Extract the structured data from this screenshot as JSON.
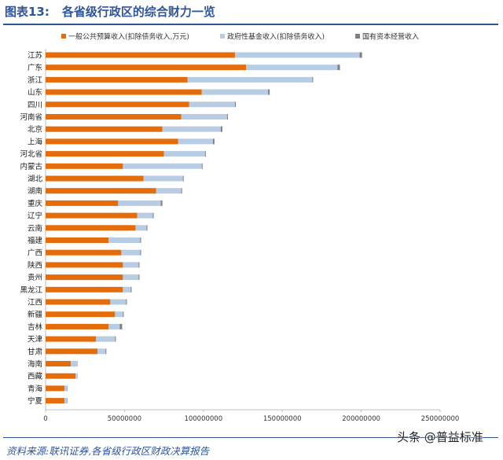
{
  "header": {
    "figure_label": "图表13:",
    "title": "各省级行政区的综合财力一览"
  },
  "footer": {
    "source": "资料来源:联讯证券,各省级行政区财政决算报告",
    "watermark": "头条 @普益标准"
  },
  "chart_data": {
    "type": "bar",
    "orientation": "horizontal",
    "stacked": true,
    "title": "各省级行政区的综合财力一览",
    "xlabel": "",
    "ylabel": "",
    "xlim": [
      0,
      250000000
    ],
    "x_ticks": [
      0,
      50000000,
      100000000,
      150000000,
      200000000,
      250000000
    ],
    "x_tick_labels": [
      "0",
      "50000000",
      "100000000",
      "150000000",
      "200000000",
      "250000000"
    ],
    "grid": false,
    "legend_position": "top",
    "categories": [
      "江苏",
      "广东",
      "浙江",
      "山东",
      "四川",
      "河南省",
      "北京",
      "上海",
      "河北省",
      "内蒙古",
      "湖北",
      "湖南",
      "重庆",
      "辽宁",
      "云南",
      "福建",
      "广西",
      "陕西",
      "贵州",
      "黑龙江",
      "江西",
      "新疆",
      "吉林",
      "天津",
      "甘肃",
      "海南",
      "西藏",
      "青海",
      "宁夏"
    ],
    "series": [
      {
        "name": "一般公共预算收入(扣除债务收入,万元)",
        "color": "#e46c0a",
        "values": [
          120000000,
          127000000,
          90000000,
          99000000,
          91000000,
          86000000,
          74000000,
          84000000,
          75000000,
          49000000,
          62000000,
          70000000,
          46000000,
          58000000,
          57000000,
          40000000,
          48000000,
          49000000,
          49000000,
          49000000,
          41000000,
          44000000,
          40000000,
          32000000,
          33000000,
          16000000,
          19000000,
          12000000,
          12000000
        ]
      },
      {
        "name": "政府性基金收入(扣除债务收入)",
        "color": "#b8cce4",
        "values": [
          79000000,
          58000000,
          79000000,
          42000000,
          29000000,
          29000000,
          37000000,
          22000000,
          26000000,
          50000000,
          25000000,
          16000000,
          27000000,
          10000000,
          7000000,
          20000000,
          12000000,
          10000000,
          10000000,
          5000000,
          10000000,
          5000000,
          7000000,
          12000000,
          5000000,
          4000000,
          1000000,
          1500000,
          1500000
        ]
      },
      {
        "name": "国有资本经营收入",
        "color": "#7f7f7f",
        "values": [
          1500000,
          1500000,
          500000,
          1000000,
          500000,
          500000,
          1000000,
          1000000,
          500000,
          500000,
          500000,
          500000,
          1000000,
          500000,
          500000,
          500000,
          500000,
          500000,
          500000,
          500000,
          500000,
          500000,
          1500000,
          500000,
          500000,
          200000,
          200000,
          300000,
          300000
        ]
      }
    ]
  }
}
